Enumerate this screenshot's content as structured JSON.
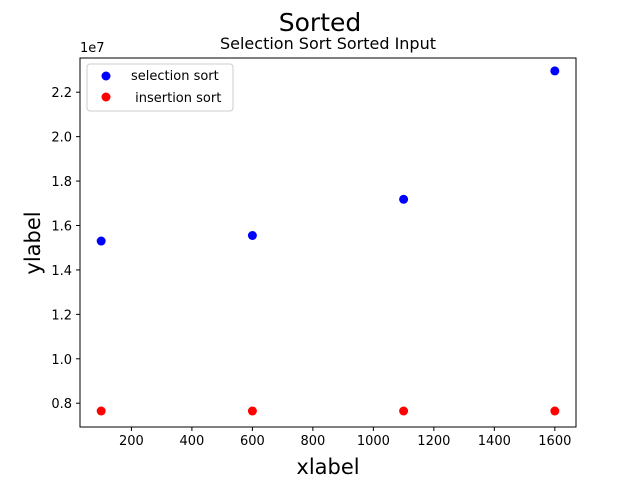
{
  "chart_data": {
    "type": "scatter",
    "suptitle": "Sorted",
    "title": "Selection Sort Sorted Input",
    "xlabel": "xlabel",
    "ylabel": "ylabel",
    "y_offset_label": "1e7",
    "xlim": [
      30,
      1670
    ],
    "ylim": [
      6930000.0,
      23540000.0
    ],
    "xticks": [
      200,
      400,
      600,
      800,
      1000,
      1200,
      1400,
      1600
    ],
    "yticks": [
      8000000.0,
      10000000.0,
      12000000.0,
      14000000.0,
      16000000.0,
      18000000.0,
      20000000.0,
      22000000.0
    ],
    "ytick_labels": [
      "0.8",
      "1.0",
      "1.2",
      "1.4",
      "1.6",
      "1.8",
      "2.0",
      "2.2"
    ],
    "grid": false,
    "legend_position": "upper-left",
    "series": [
      {
        "name": "selection sort",
        "color": "#0000ff",
        "x": [
          100,
          600,
          1100,
          1600
        ],
        "y": [
          15300000,
          15550000,
          17180000,
          22960000
        ]
      },
      {
        "name": " insertion sort",
        "color": "#ff0000",
        "x": [
          100,
          600,
          1100,
          1600
        ],
        "y": [
          7650000,
          7650000,
          7650000,
          7650000
        ]
      }
    ]
  }
}
